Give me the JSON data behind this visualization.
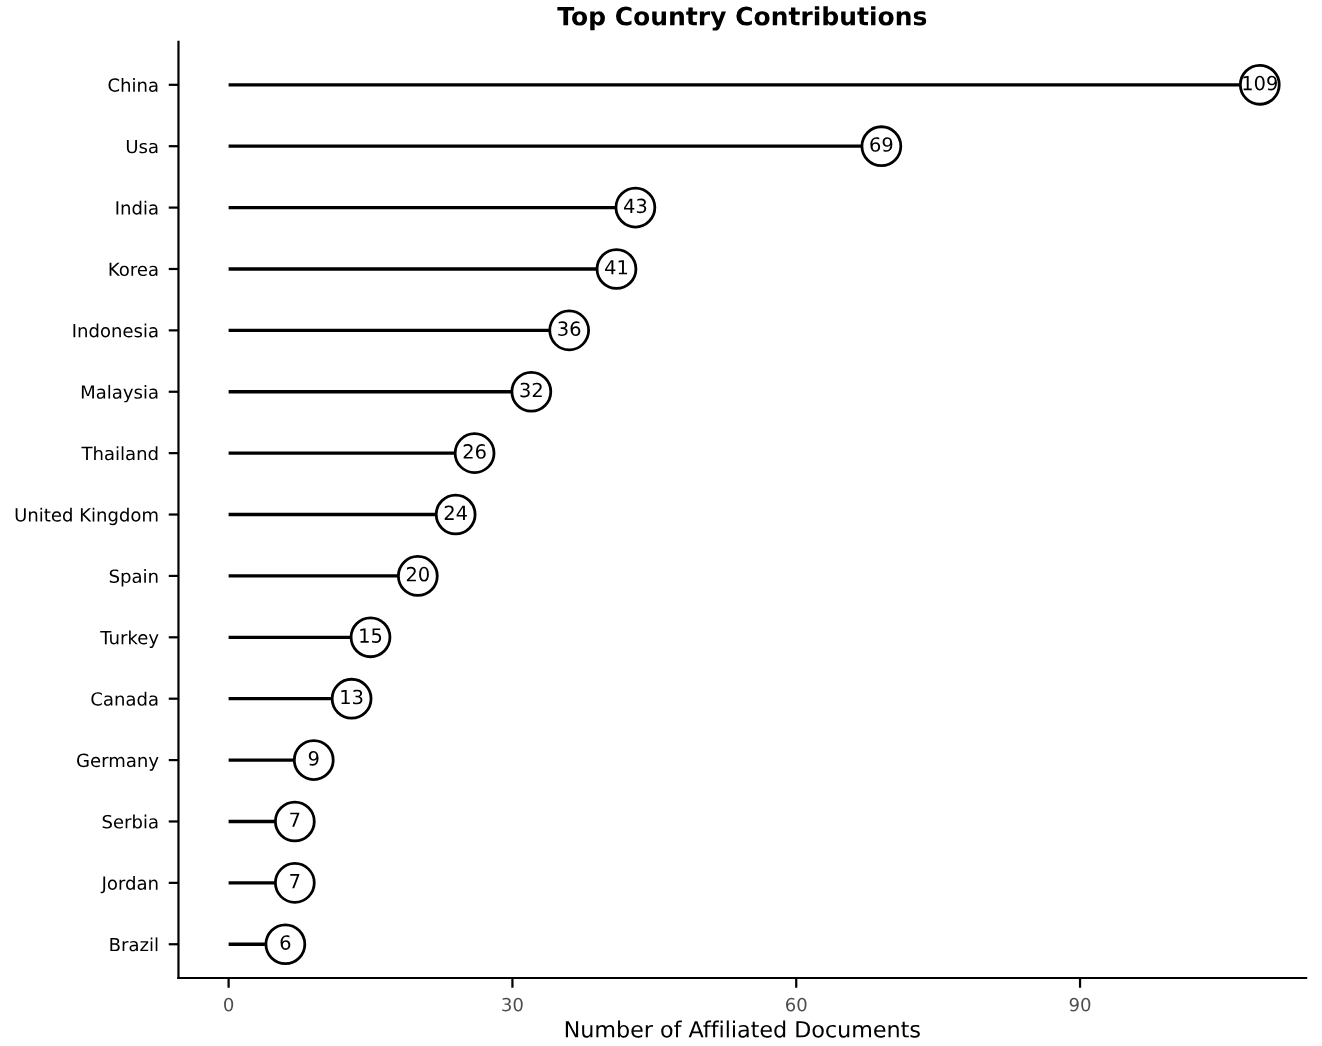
{
  "chart_data": {
    "type": "lollipop",
    "orientation": "horizontal",
    "title": "Top Country Contributions",
    "xlabel": "Number of Affiliated Documents",
    "categories": [
      "China",
      "Usa",
      "India",
      "Korea",
      "Indonesia",
      "Malaysia",
      "Thailand",
      "United Kingdom",
      "Spain",
      "Turkey",
      "Canada",
      "Germany",
      "Serbia",
      "Jordan",
      "Brazil"
    ],
    "values": [
      109,
      69,
      43,
      41,
      36,
      32,
      26,
      24,
      20,
      15,
      13,
      9,
      7,
      7,
      6
    ],
    "color": "#000000",
    "marker": "circle",
    "data_labels": true,
    "xlim": [
      -5.3,
      113.9
    ],
    "xticks": [
      0,
      30,
      60,
      90
    ],
    "grid": false
  }
}
